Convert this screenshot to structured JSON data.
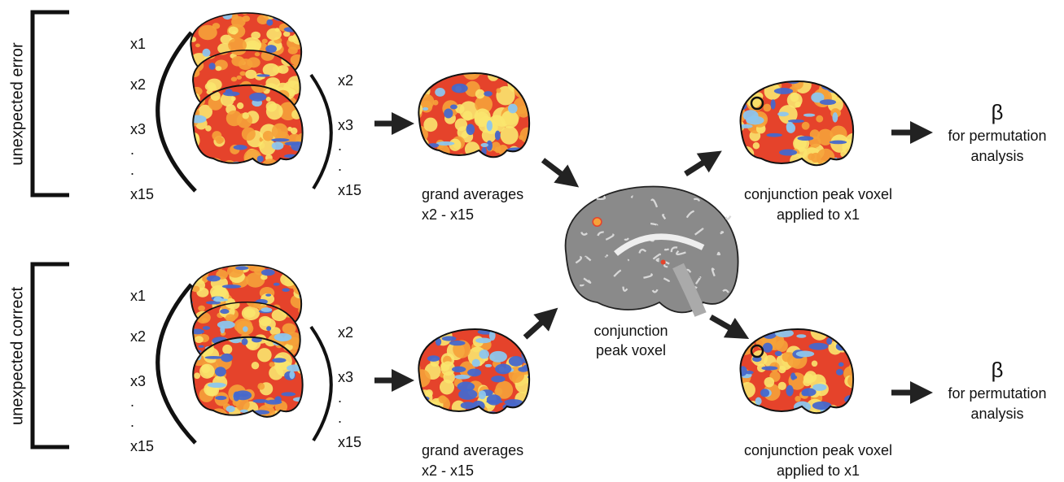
{
  "rows": [
    {
      "label": "unexpected error",
      "left_labels": [
        "x1",
        "x2",
        "x3",
        ".",
        ".",
        "x15"
      ],
      "right_labels": [
        "x2",
        "x3",
        ".",
        ".",
        "x15"
      ],
      "average_caption": [
        "grand averages",
        "x2 - x15"
      ],
      "peak_caption": [
        "conjunction peak voxel",
        "applied to x1"
      ],
      "beta": "β",
      "beta_caption": [
        "for permutation",
        "analysis"
      ]
    },
    {
      "label": "unexpected correct",
      "left_labels": [
        "x1",
        "x2",
        "x3",
        ".",
        ".",
        "x15"
      ],
      "right_labels": [
        "x2",
        "x3",
        ".",
        ".",
        "x15"
      ],
      "average_caption": [
        "grand averages",
        "x2 - x15"
      ],
      "peak_caption": [
        "conjunction peak voxel",
        "applied to x1"
      ],
      "beta": "β",
      "beta_caption": [
        "for permutation",
        "analysis"
      ]
    }
  ],
  "center_caption": [
    "conjunction",
    "peak voxel"
  ]
}
